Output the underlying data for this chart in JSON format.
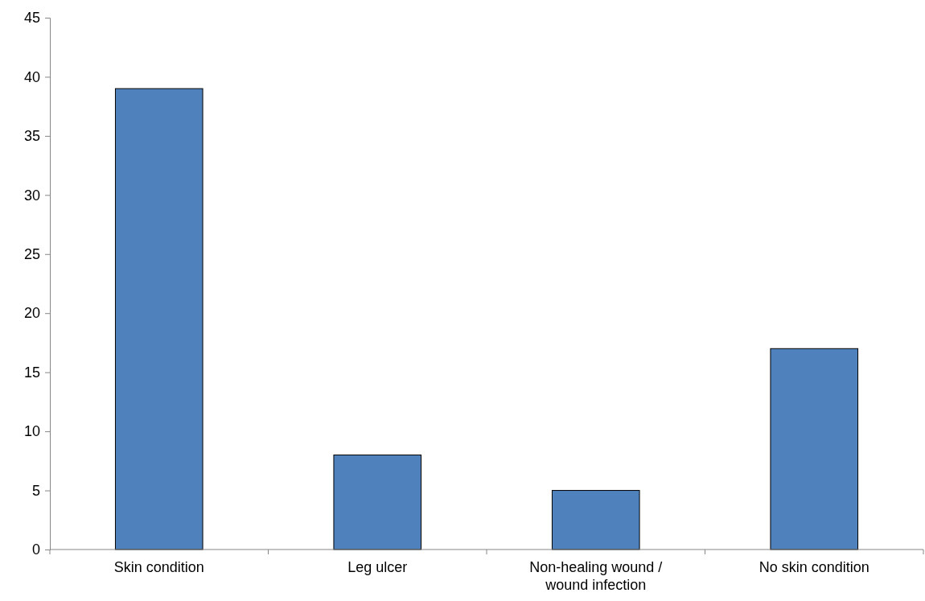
{
  "chart_data": {
    "type": "bar",
    "categories": [
      "Skin condition",
      "Leg ulcer",
      "Non-healing wound / wound infection",
      "No skin condition"
    ],
    "values": [
      39,
      8,
      5,
      17
    ],
    "color": "#4f81bd",
    "ylim": [
      0,
      45
    ],
    "yticks": [
      0,
      5,
      10,
      15,
      20,
      25,
      30,
      35,
      40,
      45
    ],
    "grid": false
  }
}
